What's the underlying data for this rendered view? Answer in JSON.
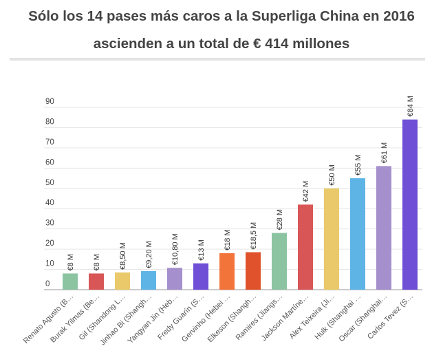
{
  "title_line1": "Sólo los 14 pases más caros a la Superliga China en 2016",
  "title_line2": "ascienden a un total de € 414 millones",
  "chart_data": {
    "type": "bar",
    "categories": [
      "Renato Agusto (B…",
      "Burak Yilmas (Be…",
      "Gil (Shandong L…",
      "Jinhao Bi (Shangh…",
      "Yangyan Jin (Heb…",
      "Fredy Guarín (S…",
      "Gervinho (Hebei …",
      "Elkeson (Shangh…",
      "Ramires (Jiangs…",
      "Jackson Martíne…",
      "Alex Teixeira (Ji…",
      "Hulk (Shanghai …",
      "Oscar (Shanghai…",
      "Carlos Tevez (S…"
    ],
    "values": [
      8,
      8,
      8.5,
      9.2,
      10.8,
      13,
      18,
      18.5,
      28,
      42,
      50,
      55,
      61,
      84
    ],
    "data_labels": [
      "€8 M",
      "€8 M",
      "€8,50 M",
      "€9,20 M",
      "€10,80 M",
      "€13 M",
      "€18 M",
      "€18,5 M",
      "€28 M",
      "€42 M",
      "€50 M",
      "€55 M",
      "€61 M",
      "€84 M"
    ],
    "colors": [
      "#8cc4a2",
      "#d95656",
      "#eac96a",
      "#5fb4e6",
      "#a58fcc",
      "#6f4fd6",
      "#f2743b",
      "#e0522b",
      "#8cc4a2",
      "#d95656",
      "#eac96a",
      "#5fb4e6",
      "#a58fcc",
      "#6f4fd6"
    ],
    "ylim": [
      0,
      90
    ],
    "yticks": [
      0,
      10,
      20,
      30,
      40,
      50,
      60,
      70,
      80,
      90
    ],
    "xlabel": "",
    "ylabel": "",
    "grid": true
  }
}
